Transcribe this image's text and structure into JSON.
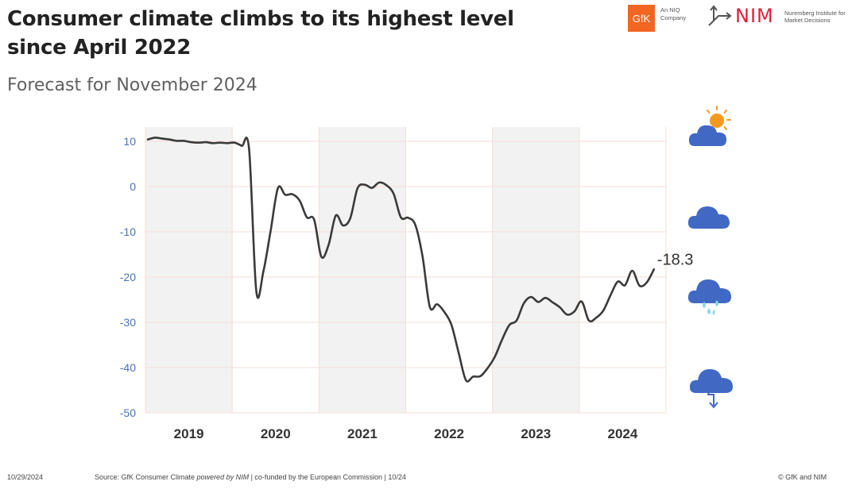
{
  "title": "Consumer climate climbs to its highest level since April 2022",
  "subtitle": "Forecast for November 2024",
  "logos": {
    "gfk_mark": "GfK",
    "gfk_tagline": "An NIQ Company",
    "nim_mark": "NIM",
    "nim_tagline": "Nuremberg Institute for Market Decisions"
  },
  "footer": {
    "date": "10/29/2024",
    "source_prefix": "Source: GfK Consumer Climate ",
    "source_italic": "powered by NIM",
    "source_suffix": " | co-funded by the European Commission | 10/24",
    "copyright": "© GfK and NIM"
  },
  "icons": [
    "sunny-cloud-icon",
    "cloud-icon",
    "rain-cloud-icon",
    "storm-cloud-icon"
  ],
  "colors": {
    "line": "#3a3a3a",
    "shade": "#f2f2f2",
    "grid": "#f5ddd6",
    "y_tick_text": "#4a72b8",
    "icon_cloud": "#4169c4",
    "icon_sun": "#f39a1e",
    "icon_rain": "#8fd3e8"
  },
  "chart_data": {
    "type": "line",
    "title": "Consumer climate climbs to its highest level since April 2022",
    "subtitle": "Forecast for November 2024",
    "ylim": [
      -50,
      10
    ],
    "yticks": [
      10,
      0,
      -10,
      -20,
      -30,
      -40,
      -50
    ],
    "years": [
      "2019",
      "2020",
      "2021",
      "2022",
      "2023",
      "2024"
    ],
    "shaded_years": [
      "2019",
      "2021",
      "2023"
    ],
    "grid": true,
    "last_value_label": "-18.3",
    "series": [
      {
        "x": [
          "2019-01",
          "2019-02",
          "2019-03",
          "2019-04",
          "2019-05",
          "2019-06",
          "2019-07",
          "2019-08",
          "2019-09",
          "2019-10",
          "2019-11",
          "2019-12",
          "2020-01",
          "2020-02",
          "2020-03",
          "2020-04",
          "2020-05",
          "2020-06",
          "2020-07",
          "2020-08",
          "2020-09",
          "2020-10",
          "2020-11",
          "2020-12",
          "2021-01",
          "2021-02",
          "2021-03",
          "2021-04",
          "2021-05",
          "2021-06",
          "2021-07",
          "2021-08",
          "2021-09",
          "2021-10",
          "2021-11",
          "2021-12",
          "2022-01",
          "2022-02",
          "2022-03",
          "2022-04",
          "2022-05",
          "2022-06",
          "2022-07",
          "2022-08",
          "2022-09",
          "2022-10",
          "2022-11",
          "2022-12",
          "2023-01",
          "2023-02",
          "2023-03",
          "2023-04",
          "2023-05",
          "2023-06",
          "2023-07",
          "2023-08",
          "2023-09",
          "2023-10",
          "2023-11",
          "2023-12",
          "2024-01",
          "2024-02",
          "2024-03",
          "2024-04",
          "2024-05",
          "2024-06",
          "2024-07",
          "2024-08",
          "2024-09",
          "2024-10",
          "2024-11"
        ],
        "values": [
          10.4,
          10.8,
          10.6,
          10.4,
          10.1,
          10.1,
          9.8,
          9.7,
          9.8,
          9.6,
          9.7,
          9.6,
          9.7,
          9.0,
          8.3,
          -23.1,
          -18.6,
          -9.6,
          -0.3,
          -1.8,
          -1.7,
          -3.1,
          -6.8,
          -7.3,
          -15.5,
          -12.9,
          -6.4,
          -8.6,
          -7.0,
          -0.4,
          0.4,
          -0.3,
          0.9,
          0.3,
          -1.6,
          -6.8,
          -6.9,
          -8.5,
          -15.5,
          -26.6,
          -26.0,
          -27.7,
          -30.6,
          -36.8,
          -42.8,
          -42.0,
          -41.9,
          -40.1,
          -37.6,
          -33.8,
          -30.6,
          -29.6,
          -25.8,
          -24.4,
          -25.5,
          -24.6,
          -25.6,
          -26.7,
          -28.3,
          -27.6,
          -25.4,
          -29.6,
          -29.0,
          -27.4,
          -24.0,
          -21.0,
          -21.8,
          -18.6,
          -21.9,
          -21.2,
          -18.3
        ]
      }
    ]
  }
}
